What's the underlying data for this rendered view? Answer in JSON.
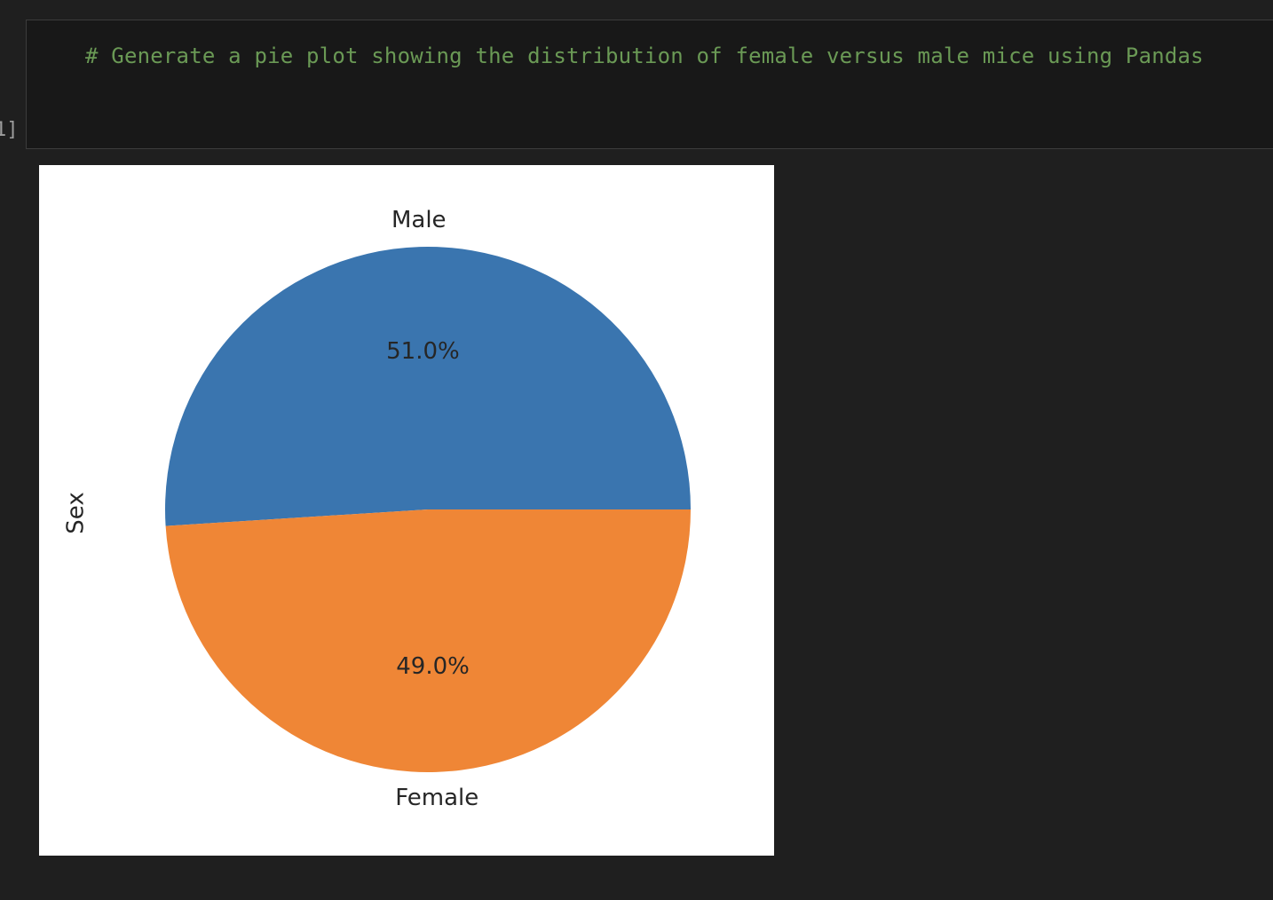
{
  "cell": {
    "execution_count": "1]",
    "code": "# Generate a pie plot showing the distribution of female versus male mice using Pandas",
    "code_color": "#6a9955"
  },
  "chart_data": {
    "type": "pie",
    "categories": [
      "Male",
      "Female"
    ],
    "values": [
      51.0,
      49.0
    ],
    "data_labels": [
      "51.0%",
      "49.0%"
    ],
    "colors": [
      "#3a75af",
      "#ef8636"
    ],
    "ylabel": "Sex",
    "start_angle_deg": 0
  }
}
